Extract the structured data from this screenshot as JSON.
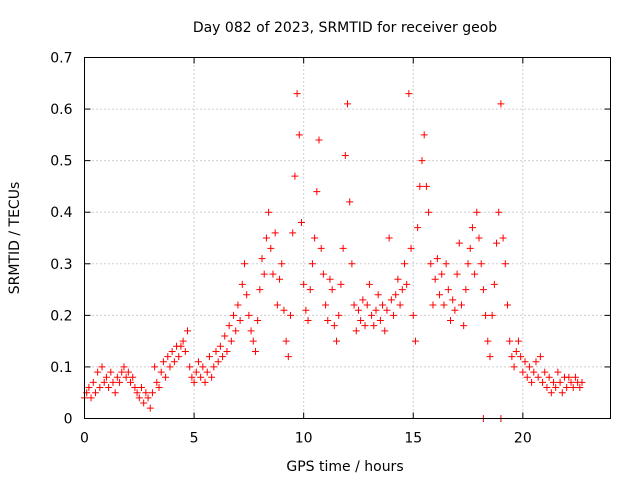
{
  "chart_data": {
    "type": "scatter",
    "title": "Day 082 of 2023, SRMTID for receiver geob",
    "xlabel": "GPS time / hours",
    "ylabel": "SRMTID / TECUs",
    "xlim": [
      0,
      24
    ],
    "ylim": [
      0,
      0.7
    ],
    "xticks": [
      0,
      5,
      10,
      15,
      20
    ],
    "yticks": [
      0,
      0.1,
      0.2,
      0.3,
      0.4,
      0.5,
      0.6,
      0.7
    ],
    "grid": true,
    "marker": "+",
    "color": "#ff0000",
    "series": [
      {
        "name": "SRMTID",
        "points": [
          [
            0.0,
            0.04
          ],
          [
            0.1,
            0.05
          ],
          [
            0.2,
            0.06
          ],
          [
            0.3,
            0.04
          ],
          [
            0.4,
            0.07
          ],
          [
            0.5,
            0.05
          ],
          [
            0.6,
            0.09
          ],
          [
            0.7,
            0.06
          ],
          [
            0.8,
            0.1
          ],
          [
            0.9,
            0.07
          ],
          [
            1.0,
            0.08
          ],
          [
            1.1,
            0.06
          ],
          [
            1.2,
            0.09
          ],
          [
            1.3,
            0.07
          ],
          [
            1.4,
            0.05
          ],
          [
            1.5,
            0.08
          ],
          [
            1.6,
            0.07
          ],
          [
            1.7,
            0.09
          ],
          [
            1.8,
            0.1
          ],
          [
            1.9,
            0.08
          ],
          [
            2.0,
            0.09
          ],
          [
            2.1,
            0.07
          ],
          [
            2.2,
            0.08
          ],
          [
            2.3,
            0.06
          ],
          [
            2.4,
            0.05
          ],
          [
            2.5,
            0.04
          ],
          [
            2.6,
            0.06
          ],
          [
            2.7,
            0.03
          ],
          [
            2.8,
            0.05
          ],
          [
            2.9,
            0.04
          ],
          [
            3.0,
            0.02
          ],
          [
            3.1,
            0.05
          ],
          [
            3.2,
            0.1
          ],
          [
            3.3,
            0.07
          ],
          [
            3.4,
            0.06
          ],
          [
            3.5,
            0.09
          ],
          [
            3.6,
            0.11
          ],
          [
            3.7,
            0.08
          ],
          [
            3.8,
            0.12
          ],
          [
            3.9,
            0.1
          ],
          [
            4.0,
            0.13
          ],
          [
            4.1,
            0.11
          ],
          [
            4.2,
            0.14
          ],
          [
            4.3,
            0.12
          ],
          [
            4.4,
            0.14
          ],
          [
            4.5,
            0.15
          ],
          [
            4.6,
            0.13
          ],
          [
            4.7,
            0.17
          ],
          [
            4.8,
            0.1
          ],
          [
            4.9,
            0.08
          ],
          [
            5.0,
            0.07
          ],
          [
            5.1,
            0.09
          ],
          [
            5.2,
            0.11
          ],
          [
            5.3,
            0.08
          ],
          [
            5.4,
            0.1
          ],
          [
            5.5,
            0.07
          ],
          [
            5.6,
            0.09
          ],
          [
            5.7,
            0.12
          ],
          [
            5.8,
            0.08
          ],
          [
            5.9,
            0.1
          ],
          [
            6.0,
            0.13
          ],
          [
            6.1,
            0.11
          ],
          [
            6.2,
            0.14
          ],
          [
            6.3,
            0.12
          ],
          [
            6.4,
            0.16
          ],
          [
            6.5,
            0.13
          ],
          [
            6.6,
            0.18
          ],
          [
            6.7,
            0.15
          ],
          [
            6.8,
            0.2
          ],
          [
            6.9,
            0.17
          ],
          [
            7.0,
            0.22
          ],
          [
            7.1,
            0.19
          ],
          [
            7.2,
            0.26
          ],
          [
            7.3,
            0.3
          ],
          [
            7.4,
            0.24
          ],
          [
            7.5,
            0.2
          ],
          [
            7.6,
            0.17
          ],
          [
            7.7,
            0.15
          ],
          [
            7.8,
            0.13
          ],
          [
            7.9,
            0.19
          ],
          [
            8.0,
            0.25
          ],
          [
            8.1,
            0.31
          ],
          [
            8.2,
            0.28
          ],
          [
            8.3,
            0.35
          ],
          [
            8.4,
            0.4
          ],
          [
            8.5,
            0.33
          ],
          [
            8.6,
            0.28
          ],
          [
            8.7,
            0.36
          ],
          [
            8.8,
            0.22
          ],
          [
            8.9,
            0.27
          ],
          [
            9.0,
            0.3
          ],
          [
            9.1,
            0.21
          ],
          [
            9.2,
            0.15
          ],
          [
            9.3,
            0.12
          ],
          [
            9.4,
            0.2
          ],
          [
            9.5,
            0.36
          ],
          [
            9.6,
            0.47
          ],
          [
            9.7,
            0.63
          ],
          [
            9.8,
            0.55
          ],
          [
            9.9,
            0.38
          ],
          [
            10.0,
            0.26
          ],
          [
            10.1,
            0.21
          ],
          [
            10.2,
            0.19
          ],
          [
            10.3,
            0.25
          ],
          [
            10.4,
            0.3
          ],
          [
            10.5,
            0.35
          ],
          [
            10.6,
            0.44
          ],
          [
            10.7,
            0.54
          ],
          [
            10.8,
            0.33
          ],
          [
            10.9,
            0.28
          ],
          [
            11.0,
            0.22
          ],
          [
            11.1,
            0.19
          ],
          [
            11.2,
            0.27
          ],
          [
            11.3,
            0.25
          ],
          [
            11.4,
            0.18
          ],
          [
            11.5,
            0.15
          ],
          [
            11.6,
            0.2
          ],
          [
            11.7,
            0.26
          ],
          [
            11.8,
            0.33
          ],
          [
            11.9,
            0.51
          ],
          [
            12.0,
            0.61
          ],
          [
            12.1,
            0.42
          ],
          [
            12.2,
            0.3
          ],
          [
            12.3,
            0.22
          ],
          [
            12.4,
            0.17
          ],
          [
            12.5,
            0.21
          ],
          [
            12.6,
            0.19
          ],
          [
            12.7,
            0.23
          ],
          [
            12.8,
            0.18
          ],
          [
            12.9,
            0.22
          ],
          [
            13.0,
            0.26
          ],
          [
            13.1,
            0.2
          ],
          [
            13.2,
            0.18
          ],
          [
            13.3,
            0.21
          ],
          [
            13.4,
            0.24
          ],
          [
            13.5,
            0.19
          ],
          [
            13.6,
            0.22
          ],
          [
            13.7,
            0.17
          ],
          [
            13.8,
            0.21
          ],
          [
            13.9,
            0.35
          ],
          [
            14.0,
            0.23
          ],
          [
            14.1,
            0.2
          ],
          [
            14.2,
            0.24
          ],
          [
            14.3,
            0.27
          ],
          [
            14.4,
            0.22
          ],
          [
            14.5,
            0.25
          ],
          [
            14.6,
            0.3
          ],
          [
            14.7,
            0.26
          ],
          [
            14.8,
            0.63
          ],
          [
            14.9,
            0.33
          ],
          [
            15.0,
            0.2
          ],
          [
            15.1,
            0.15
          ],
          [
            15.2,
            0.37
          ],
          [
            15.3,
            0.45
          ],
          [
            15.4,
            0.5
          ],
          [
            15.5,
            0.55
          ],
          [
            15.6,
            0.45
          ],
          [
            15.7,
            0.4
          ],
          [
            15.8,
            0.3
          ],
          [
            15.9,
            0.22
          ],
          [
            16.0,
            0.27
          ],
          [
            16.1,
            0.31
          ],
          [
            16.2,
            0.24
          ],
          [
            16.3,
            0.28
          ],
          [
            16.4,
            0.22
          ],
          [
            16.5,
            0.3
          ],
          [
            16.6,
            0.25
          ],
          [
            16.7,
            0.19
          ],
          [
            16.8,
            0.23
          ],
          [
            16.9,
            0.21
          ],
          [
            17.0,
            0.28
          ],
          [
            17.1,
            0.34
          ],
          [
            17.2,
            0.22
          ],
          [
            17.3,
            0.18
          ],
          [
            17.4,
            0.25
          ],
          [
            17.5,
            0.3
          ],
          [
            17.6,
            0.33
          ],
          [
            17.7,
            0.37
          ],
          [
            17.8,
            0.28
          ],
          [
            17.9,
            0.4
          ],
          [
            18.0,
            0.35
          ],
          [
            18.1,
            0.3
          ],
          [
            18.2,
            0.25
          ],
          [
            18.3,
            0.2
          ],
          [
            18.4,
            0.15
          ],
          [
            18.5,
            0.12
          ],
          [
            18.6,
            0.2
          ],
          [
            18.7,
            0.26
          ],
          [
            18.8,
            0.34
          ],
          [
            18.9,
            0.4
          ],
          [
            19.0,
            0.61
          ],
          [
            19.1,
            0.35
          ],
          [
            19.2,
            0.3
          ],
          [
            19.3,
            0.22
          ],
          [
            19.4,
            0.15
          ],
          [
            19.5,
            0.12
          ],
          [
            19.6,
            0.1
          ],
          [
            19.7,
            0.13
          ],
          [
            19.8,
            0.15
          ],
          [
            19.9,
            0.12
          ],
          [
            20.0,
            0.09
          ],
          [
            20.1,
            0.11
          ],
          [
            20.2,
            0.08
          ],
          [
            20.3,
            0.1
          ],
          [
            20.4,
            0.07
          ],
          [
            20.5,
            0.09
          ],
          [
            20.6,
            0.11
          ],
          [
            20.7,
            0.08
          ],
          [
            20.8,
            0.12
          ],
          [
            20.9,
            0.07
          ],
          [
            21.0,
            0.09
          ],
          [
            21.1,
            0.06
          ],
          [
            21.2,
            0.08
          ],
          [
            21.3,
            0.05
          ],
          [
            21.4,
            0.07
          ],
          [
            21.5,
            0.06
          ],
          [
            21.6,
            0.09
          ],
          [
            21.7,
            0.07
          ],
          [
            21.8,
            0.05
          ],
          [
            21.9,
            0.08
          ],
          [
            22.0,
            0.06
          ],
          [
            22.1,
            0.08
          ],
          [
            22.2,
            0.07
          ],
          [
            22.3,
            0.06
          ],
          [
            22.4,
            0.08
          ],
          [
            22.5,
            0.07
          ],
          [
            22.6,
            0.06
          ],
          [
            22.7,
            0.07
          ],
          [
            18.2,
            0.0
          ],
          [
            19.0,
            0.0
          ]
        ]
      }
    ]
  }
}
